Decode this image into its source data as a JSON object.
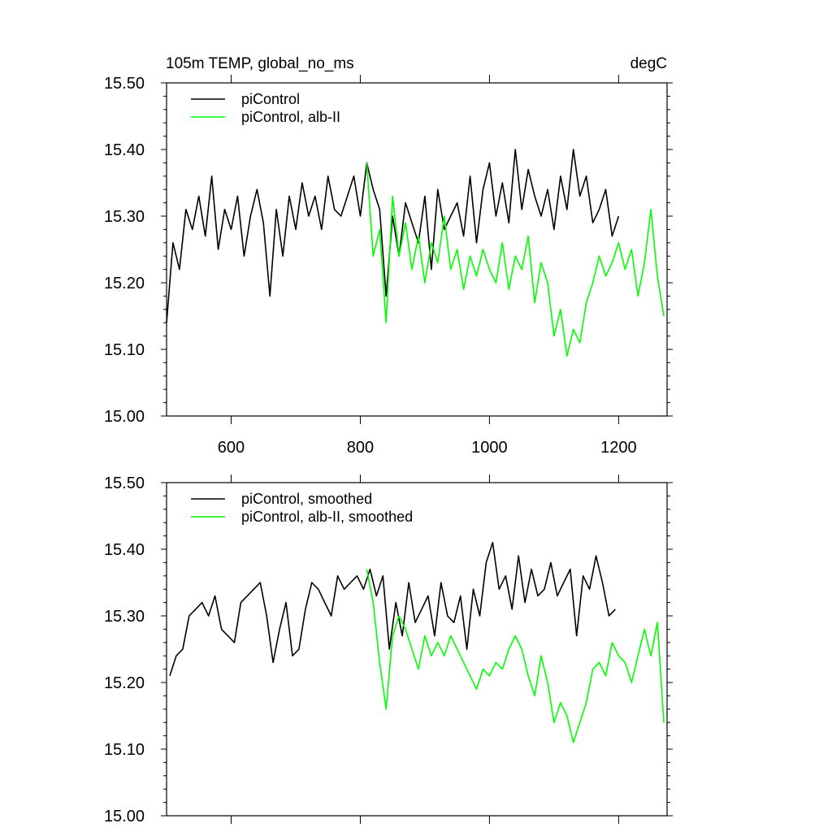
{
  "chart_data": [
    {
      "type": "line",
      "title_left": "105m TEMP, global_no_ms",
      "title_right": "degC",
      "xlim": [
        500,
        1275
      ],
      "ylim": [
        15.0,
        15.5
      ],
      "xticks": [
        600,
        800,
        1000,
        1200
      ],
      "xtick_labels": [
        "600",
        "800",
        "1000",
        "1200"
      ],
      "yticks": [
        15.0,
        15.1,
        15.2,
        15.3,
        15.4,
        15.5
      ],
      "ytick_labels": [
        "15.00",
        "15.10",
        "15.20",
        "15.30",
        "15.40",
        "15.50"
      ],
      "legend_position": "top-left",
      "series": [
        {
          "name": "piControl",
          "color": "#000000",
          "x": [
            500,
            510,
            520,
            530,
            540,
            550,
            560,
            570,
            580,
            590,
            600,
            610,
            620,
            630,
            640,
            650,
            660,
            670,
            680,
            690,
            700,
            710,
            720,
            730,
            740,
            750,
            760,
            770,
            780,
            790,
            800,
            810,
            820,
            830,
            840,
            850,
            860,
            870,
            880,
            890,
            900,
            910,
            920,
            930,
            940,
            950,
            960,
            970,
            980,
            990,
            1000,
            1010,
            1020,
            1030,
            1040,
            1050,
            1060,
            1070,
            1080,
            1090,
            1100,
            1110,
            1120,
            1130,
            1140,
            1150,
            1160,
            1170,
            1180,
            1190,
            1200
          ],
          "y": [
            15.14,
            15.26,
            15.22,
            15.31,
            15.28,
            15.33,
            15.27,
            15.36,
            15.25,
            15.31,
            15.28,
            15.33,
            15.24,
            15.3,
            15.34,
            15.29,
            15.18,
            15.31,
            15.24,
            15.33,
            15.28,
            15.35,
            15.3,
            15.33,
            15.28,
            15.36,
            15.31,
            15.3,
            15.33,
            15.36,
            15.3,
            15.38,
            15.34,
            15.31,
            15.18,
            15.3,
            15.24,
            15.32,
            15.29,
            15.26,
            15.33,
            15.22,
            15.34,
            15.28,
            15.3,
            15.32,
            15.27,
            15.36,
            15.26,
            15.34,
            15.38,
            15.3,
            15.35,
            15.29,
            15.4,
            15.31,
            15.37,
            15.33,
            15.3,
            15.34,
            15.28,
            15.36,
            15.31,
            15.4,
            15.33,
            15.36,
            15.29,
            15.31,
            15.34,
            15.27,
            15.3
          ]
        },
        {
          "name": "piControl, alb-II",
          "color": "#00ff00",
          "x": [
            810,
            820,
            830,
            840,
            850,
            860,
            870,
            880,
            890,
            900,
            910,
            920,
            930,
            940,
            950,
            960,
            970,
            980,
            990,
            1000,
            1010,
            1020,
            1030,
            1040,
            1050,
            1060,
            1070,
            1080,
            1090,
            1100,
            1110,
            1120,
            1130,
            1140,
            1150,
            1160,
            1170,
            1180,
            1190,
            1200,
            1210,
            1220,
            1230,
            1240,
            1250,
            1260,
            1270
          ],
          "y": [
            15.38,
            15.24,
            15.28,
            15.14,
            15.33,
            15.24,
            15.29,
            15.22,
            15.27,
            15.2,
            15.26,
            15.23,
            15.3,
            15.22,
            15.25,
            15.19,
            15.24,
            15.21,
            15.25,
            15.22,
            15.2,
            15.26,
            15.19,
            15.24,
            15.22,
            15.27,
            15.17,
            15.23,
            15.2,
            15.12,
            15.16,
            15.09,
            15.13,
            15.11,
            15.17,
            15.2,
            15.24,
            15.21,
            15.23,
            15.26,
            15.22,
            15.25,
            15.18,
            15.23,
            15.31,
            15.21,
            15.15
          ]
        }
      ]
    },
    {
      "type": "line",
      "xlim": [
        500,
        1275
      ],
      "ylim": [
        15.0,
        15.5
      ],
      "xticks": [
        600,
        800,
        1000,
        1200
      ],
      "yticks": [
        15.0,
        15.1,
        15.2,
        15.3,
        15.4,
        15.5
      ],
      "ytick_labels": [
        "15.00",
        "15.10",
        "15.20",
        "15.30",
        "15.40",
        "15.50"
      ],
      "legend_position": "top-left",
      "series": [
        {
          "name": "piControl, smoothed",
          "color": "#000000",
          "x": [
            505,
            515,
            525,
            535,
            545,
            555,
            565,
            575,
            585,
            595,
            605,
            615,
            625,
            635,
            645,
            655,
            665,
            675,
            685,
            695,
            705,
            715,
            725,
            735,
            745,
            755,
            765,
            775,
            785,
            795,
            805,
            815,
            825,
            835,
            845,
            855,
            865,
            875,
            885,
            895,
            905,
            915,
            925,
            935,
            945,
            955,
            965,
            975,
            985,
            995,
            1005,
            1015,
            1025,
            1035,
            1045,
            1055,
            1065,
            1075,
            1085,
            1095,
            1105,
            1115,
            1125,
            1135,
            1145,
            1155,
            1165,
            1175,
            1185,
            1195
          ],
          "y": [
            15.21,
            15.24,
            15.25,
            15.3,
            15.31,
            15.32,
            15.3,
            15.33,
            15.28,
            15.27,
            15.26,
            15.32,
            15.33,
            15.34,
            15.35,
            15.3,
            15.23,
            15.28,
            15.32,
            15.24,
            15.25,
            15.31,
            15.35,
            15.34,
            15.32,
            15.3,
            15.36,
            15.34,
            15.35,
            15.36,
            15.34,
            15.37,
            15.33,
            15.36,
            15.25,
            15.32,
            15.27,
            15.35,
            15.29,
            15.31,
            15.33,
            15.27,
            15.35,
            15.3,
            15.29,
            15.33,
            15.25,
            15.34,
            15.3,
            15.38,
            15.41,
            15.34,
            15.36,
            15.31,
            15.39,
            15.32,
            15.37,
            15.33,
            15.34,
            15.38,
            15.33,
            15.35,
            15.37,
            15.27,
            15.36,
            15.34,
            15.39,
            15.35,
            15.3,
            15.31
          ]
        },
        {
          "name": "piControl, alb-II, smoothed",
          "color": "#00ff00",
          "x": [
            810,
            820,
            830,
            840,
            850,
            860,
            870,
            880,
            890,
            900,
            910,
            920,
            930,
            940,
            950,
            960,
            970,
            980,
            990,
            1000,
            1010,
            1020,
            1030,
            1040,
            1050,
            1060,
            1070,
            1080,
            1090,
            1100,
            1110,
            1120,
            1130,
            1140,
            1150,
            1160,
            1170,
            1180,
            1190,
            1200,
            1210,
            1220,
            1230,
            1240,
            1250,
            1260,
            1270
          ],
          "y": [
            15.37,
            15.32,
            15.23,
            15.16,
            15.27,
            15.3,
            15.28,
            15.25,
            15.22,
            15.27,
            15.24,
            15.26,
            15.24,
            15.27,
            15.25,
            15.23,
            15.21,
            15.19,
            15.22,
            15.21,
            15.23,
            15.22,
            15.25,
            15.27,
            15.25,
            15.21,
            15.18,
            15.24,
            15.2,
            15.14,
            15.17,
            15.15,
            15.11,
            15.14,
            15.17,
            15.22,
            15.23,
            15.21,
            15.26,
            15.24,
            15.23,
            15.2,
            15.24,
            15.28,
            15.24,
            15.29,
            15.14
          ]
        }
      ]
    }
  ]
}
